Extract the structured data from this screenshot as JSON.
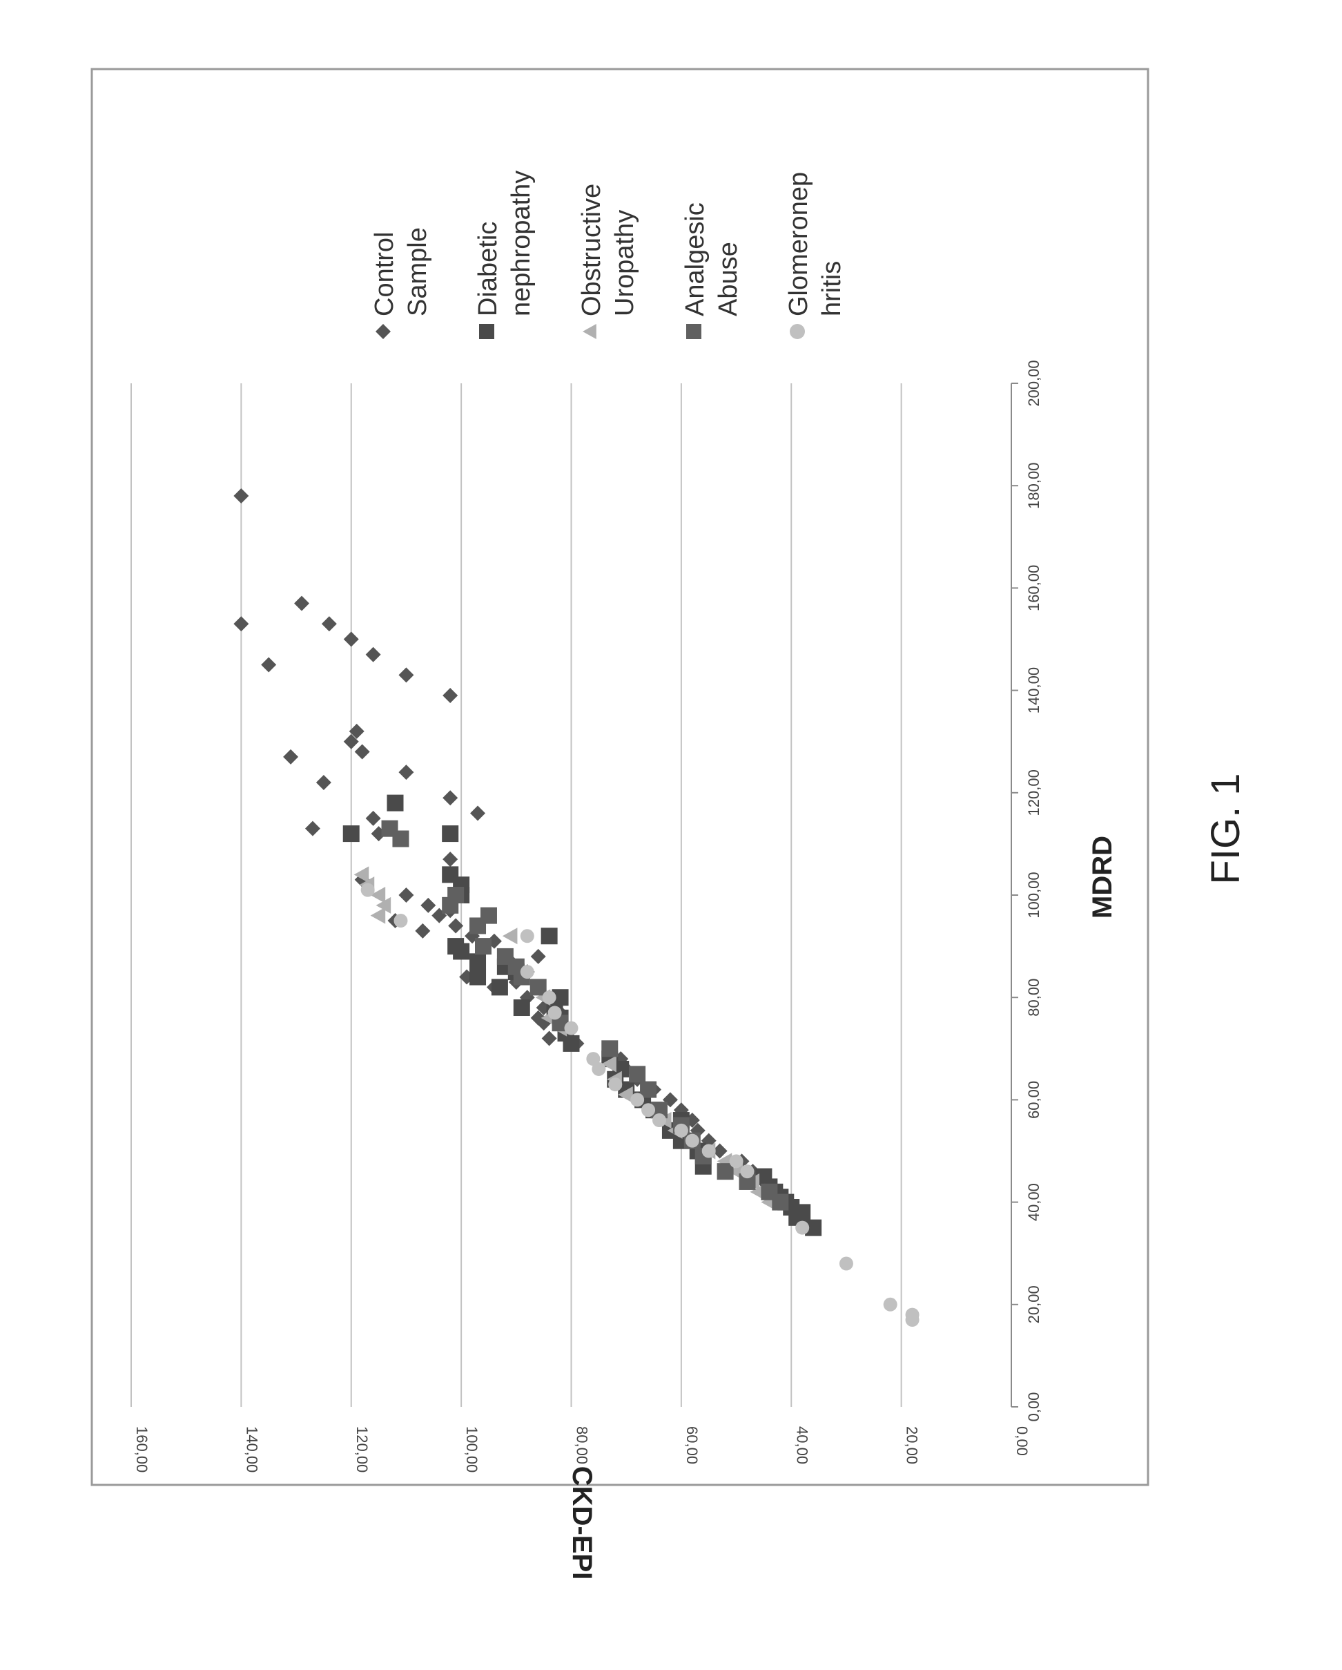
{
  "figure": {
    "caption": "FIG. 1"
  },
  "chart_data": {
    "type": "scatter",
    "xlabel": "MDRD",
    "ylabel": "CKD-EPI",
    "xlim": [
      0,
      200
    ],
    "ylim": [
      0,
      160
    ],
    "x_ticks": [
      "0,00",
      "20,00",
      "40,00",
      "60,00",
      "80,00",
      "100,00",
      "120,00",
      "140,00",
      "160,00",
      "180,00",
      "200,00"
    ],
    "y_ticks": [
      "0,00",
      "20,00",
      "40,00",
      "60,00",
      "80,00",
      "100,00",
      "120,00",
      "140,00",
      "160,00"
    ],
    "grid": "horizontal",
    "legend_position": "right",
    "colors": {
      "control": "#555555",
      "diabetic": "#4a4a4a",
      "obstructive": "#b0b0b0",
      "analgesic": "#606060",
      "glomerulo": "#c0c0c0"
    },
    "legend": [
      {
        "lines": [
          "Control",
          "Sample"
        ],
        "marker": "diamond",
        "color_key": "control"
      },
      {
        "lines": [
          "Diabetic",
          "nephropathy"
        ],
        "marker": "square",
        "color_key": "diabetic"
      },
      {
        "lines": [
          "Obstructive",
          "Uropathy"
        ],
        "marker": "triangle",
        "color_key": "obstructive"
      },
      {
        "lines": [
          "Analgesic",
          "Abuse"
        ],
        "marker": "square",
        "color_key": "analgesic"
      },
      {
        "lines": [
          "Glomeronep",
          "hritis"
        ],
        "marker": "circle",
        "color_key": "glomerulo"
      }
    ],
    "series": [
      {
        "name": "Control Sample",
        "marker": "diamond",
        "color_key": "control",
        "size": 11,
        "points": [
          [
            178,
            140
          ],
          [
            153,
            140
          ],
          [
            157,
            129
          ],
          [
            153,
            124
          ],
          [
            145,
            135
          ],
          [
            150,
            120
          ],
          [
            147,
            116
          ],
          [
            143,
            110
          ],
          [
            139,
            102
          ],
          [
            132,
            119
          ],
          [
            130,
            120
          ],
          [
            128,
            118
          ],
          [
            127,
            131
          ],
          [
            124,
            110
          ],
          [
            122,
            125
          ],
          [
            119,
            102
          ],
          [
            116,
            97
          ],
          [
            115,
            116
          ],
          [
            113,
            127
          ],
          [
            112,
            115
          ],
          [
            107,
            102
          ],
          [
            103,
            118
          ],
          [
            100,
            110
          ],
          [
            98,
            106
          ],
          [
            97,
            102
          ],
          [
            96,
            104
          ],
          [
            95,
            112
          ],
          [
            94,
            101
          ],
          [
            93,
            107
          ],
          [
            92,
            98
          ],
          [
            91,
            94
          ],
          [
            90,
            96
          ],
          [
            89,
            100
          ],
          [
            88,
            86
          ],
          [
            87,
            91
          ],
          [
            86,
            92
          ],
          [
            85,
            88
          ],
          [
            84,
            99
          ],
          [
            83,
            90
          ],
          [
            82,
            94
          ],
          [
            80,
            88
          ],
          [
            79,
            83
          ],
          [
            78,
            85
          ],
          [
            77,
            82
          ],
          [
            76,
            86
          ],
          [
            75,
            85
          ],
          [
            72,
            84
          ],
          [
            71,
            79
          ],
          [
            70,
            73
          ],
          [
            68,
            71
          ],
          [
            66,
            70
          ],
          [
            64,
            68
          ],
          [
            62,
            65
          ],
          [
            60,
            62
          ],
          [
            58,
            60
          ],
          [
            56,
            58
          ],
          [
            54,
            57
          ],
          [
            52,
            55
          ],
          [
            50,
            53
          ],
          [
            48,
            49
          ],
          [
            46,
            47
          ],
          [
            44,
            45
          ],
          [
            42,
            44
          ]
        ]
      },
      {
        "name": "Diabetic nephropathy",
        "marker": "square",
        "color_key": "diabetic",
        "size": 12,
        "points": [
          [
            118,
            112
          ],
          [
            112,
            120
          ],
          [
            112,
            102
          ],
          [
            104,
            102
          ],
          [
            102,
            100
          ],
          [
            100,
            100
          ],
          [
            92,
            84
          ],
          [
            90,
            101
          ],
          [
            89,
            100
          ],
          [
            87,
            97
          ],
          [
            86,
            92
          ],
          [
            85,
            90
          ],
          [
            84,
            97
          ],
          [
            82,
            93
          ],
          [
            80,
            82
          ],
          [
            78,
            89
          ],
          [
            77,
            83
          ],
          [
            76,
            82
          ],
          [
            73,
            81
          ],
          [
            71,
            80
          ],
          [
            68,
            73
          ],
          [
            66,
            71
          ],
          [
            64,
            72
          ],
          [
            62,
            70
          ],
          [
            60,
            67
          ],
          [
            58,
            65
          ],
          [
            56,
            60
          ],
          [
            54,
            62
          ],
          [
            52,
            60
          ],
          [
            50,
            57
          ],
          [
            47,
            56
          ],
          [
            45,
            45
          ],
          [
            43,
            44
          ],
          [
            42,
            43
          ],
          [
            41,
            42
          ],
          [
            40,
            41
          ],
          [
            39,
            40
          ],
          [
            38,
            38
          ],
          [
            37,
            39
          ],
          [
            35,
            36
          ]
        ]
      },
      {
        "name": "Obstructive Uropathy",
        "marker": "triangle",
        "color_key": "obstructive",
        "size": 12,
        "points": [
          [
            104,
            118
          ],
          [
            102,
            117
          ],
          [
            100,
            115
          ],
          [
            98,
            114
          ],
          [
            96,
            115
          ],
          [
            92,
            91
          ],
          [
            88,
            92
          ],
          [
            84,
            89
          ],
          [
            80,
            85
          ],
          [
            76,
            84
          ],
          [
            74,
            82
          ],
          [
            67,
            73
          ],
          [
            64,
            72
          ],
          [
            61,
            70
          ],
          [
            58,
            65
          ],
          [
            56,
            63
          ],
          [
            54,
            61
          ],
          [
            52,
            58
          ],
          [
            50,
            55
          ],
          [
            48,
            52
          ],
          [
            46,
            50
          ],
          [
            44,
            47
          ],
          [
            42,
            46
          ],
          [
            40,
            44
          ]
        ]
      },
      {
        "name": "Analgesic Abuse",
        "marker": "square",
        "color_key": "analgesic",
        "size": 12,
        "points": [
          [
            113,
            113
          ],
          [
            111,
            111
          ],
          [
            100,
            101
          ],
          [
            98,
            102
          ],
          [
            96,
            95
          ],
          [
            94,
            97
          ],
          [
            90,
            96
          ],
          [
            88,
            92
          ],
          [
            86,
            90
          ],
          [
            84,
            89
          ],
          [
            82,
            86
          ],
          [
            75,
            82
          ],
          [
            70,
            73
          ],
          [
            65,
            68
          ],
          [
            62,
            66
          ],
          [
            58,
            64
          ],
          [
            55,
            60
          ],
          [
            52,
            58
          ],
          [
            49,
            56
          ],
          [
            46,
            52
          ],
          [
            44,
            48
          ],
          [
            42,
            44
          ],
          [
            40,
            42
          ]
        ]
      },
      {
        "name": "Glomeronephritis",
        "marker": "circle",
        "color_key": "glomerulo",
        "size": 10,
        "points": [
          [
            101,
            117
          ],
          [
            95,
            111
          ],
          [
            92,
            88
          ],
          [
            85,
            88
          ],
          [
            80,
            84
          ],
          [
            77,
            83
          ],
          [
            74,
            80
          ],
          [
            68,
            76
          ],
          [
            66,
            75
          ],
          [
            63,
            72
          ],
          [
            60,
            68
          ],
          [
            58,
            66
          ],
          [
            56,
            64
          ],
          [
            54,
            60
          ],
          [
            52,
            58
          ],
          [
            50,
            55
          ],
          [
            48,
            50
          ],
          [
            46,
            48
          ],
          [
            35,
            38
          ],
          [
            28,
            30
          ],
          [
            20,
            22
          ],
          [
            18,
            18
          ],
          [
            17,
            18
          ]
        ]
      }
    ]
  }
}
